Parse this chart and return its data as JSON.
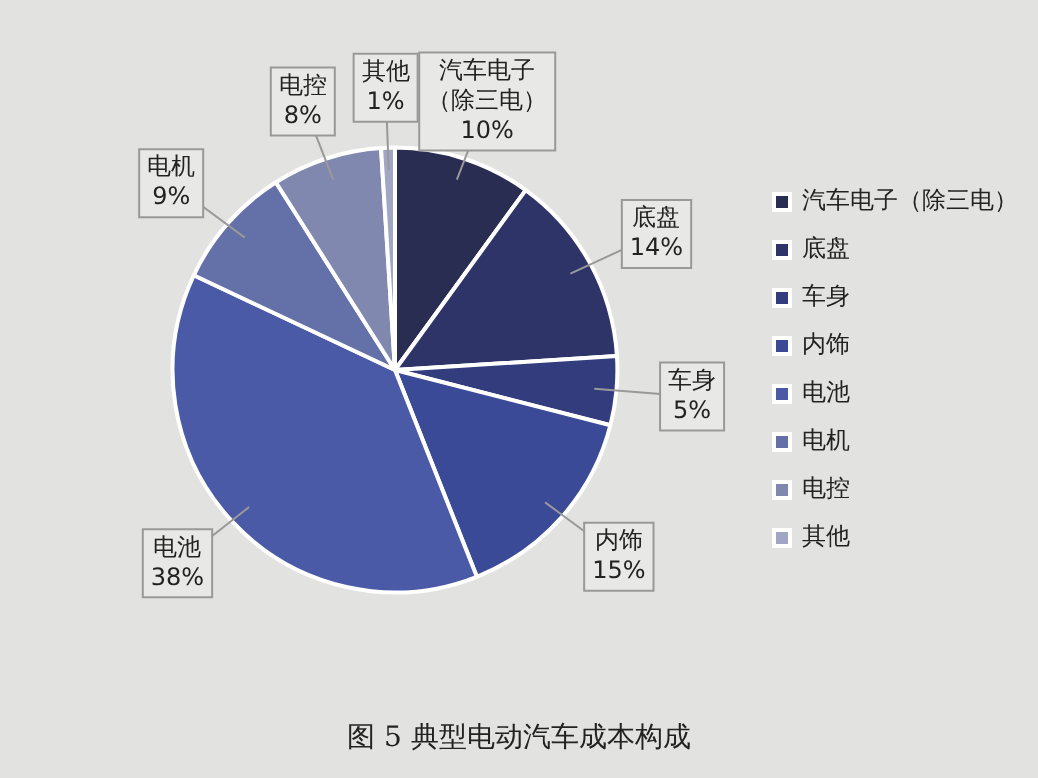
{
  "chart_data": {
    "type": "pie",
    "title": "图 5 典型电动汽车成本构成",
    "categories": [
      "汽车电子（除三电）",
      "底盘",
      "车身",
      "内饰",
      "电池",
      "电机",
      "电控",
      "其他"
    ],
    "values": [
      10,
      14,
      5,
      15,
      38,
      9,
      8,
      1
    ],
    "colors": [
      "#2a2d52",
      "#2e3468",
      "#333d7e",
      "#3a4a96",
      "#4a5aa6",
      "#6470a8",
      "#8088b0",
      "#a0a6c4"
    ],
    "value_labels": [
      "10%",
      "14%",
      "5%",
      "15%",
      "38%",
      "9%",
      "8%",
      "1%"
    ],
    "legend": "right"
  }
}
